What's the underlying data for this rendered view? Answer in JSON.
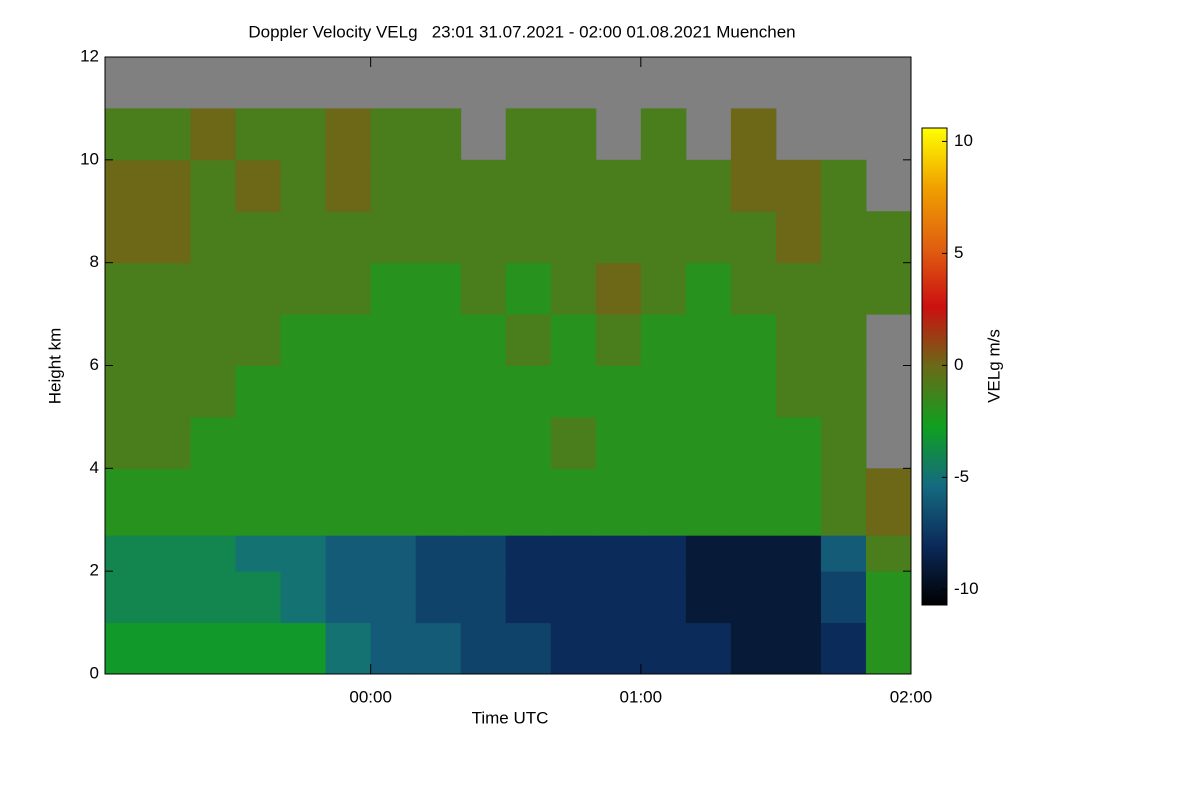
{
  "chart_data": {
    "type": "heatmap",
    "title": "Doppler Velocity VELg   23:01 31.07.2021 - 02:00 01.08.2021 Muenchen",
    "xlabel": "Time UTC",
    "ylabel": "Height km",
    "colorbar_label": "VELg m/s",
    "xlim": [
      23.0167,
      26.0
    ],
    "xticks": [
      {
        "value": 24,
        "label": "00:00"
      },
      {
        "value": 25,
        "label": "01:00"
      },
      {
        "value": 26,
        "label": "02:00"
      }
    ],
    "ylim": [
      0,
      12
    ],
    "yticks": [
      0,
      2,
      4,
      6,
      8,
      10,
      12
    ],
    "clim": [
      -10.7,
      10.6
    ],
    "cticks": [
      -10,
      -5,
      0,
      5,
      10
    ],
    "colormap": [
      "#000000",
      "#0b2a5a",
      "#156a80",
      "#10a020",
      "#6a6a18",
      "#cc1010",
      "#e06010",
      "#f0a000",
      "#ffff00"
    ],
    "nodata_color": "#808080",
    "xbins": [
      23.0167,
      23.1667,
      23.3333,
      23.5,
      23.6667,
      23.8333,
      24,
      24.1667,
      24.3333,
      24.5,
      24.6667,
      24.8333,
      25,
      25.1667,
      25.3333,
      25.5,
      25.6667,
      25.8333,
      26.0
    ],
    "ybins": [
      0,
      1,
      2,
      2.7,
      4,
      5,
      6,
      7,
      8,
      9,
      10,
      11,
      12
    ],
    "z": [
      [
        -3,
        -3,
        -3,
        -3,
        -3,
        -5,
        -6,
        -6,
        -7,
        -7,
        -8,
        -8,
        -8,
        -8,
        -9,
        -9,
        -8,
        -2
      ],
      [
        -4,
        -4,
        -4,
        -4,
        -5,
        -6,
        -6,
        -7,
        -7,
        -8,
        -8,
        -8,
        -8,
        -9,
        -9,
        -9,
        -7,
        -2
      ],
      [
        -4,
        -4,
        -4,
        -5,
        -5,
        -6,
        -6,
        -7,
        -7,
        -8,
        -8,
        -8,
        -8,
        -9,
        -9,
        -9,
        -6,
        -1
      ],
      [
        -2,
        -2,
        -2,
        -2,
        -2,
        -2,
        -2,
        -2,
        -2,
        -2,
        -2,
        -2,
        -2,
        -2,
        -2,
        -2,
        -1,
        0
      ],
      [
        -1,
        -1,
        -2,
        -2,
        -2,
        -2,
        -2,
        -2,
        -2,
        -2,
        -1,
        -2,
        -2,
        -2,
        -2,
        -2,
        -1,
        null
      ],
      [
        -1,
        -1,
        -1,
        -2,
        -2,
        -2,
        -2,
        -2,
        -2,
        -2,
        -2,
        -2,
        -2,
        -2,
        -2,
        -1,
        -1,
        null
      ],
      [
        -1,
        -1,
        -1,
        -1,
        -2,
        -2,
        -2,
        -2,
        -2,
        -1,
        -2,
        -1,
        -2,
        -2,
        -2,
        -1,
        -1,
        null
      ],
      [
        -1,
        -1,
        -1,
        -1,
        -1,
        -1,
        -2,
        -2,
        -1,
        -2,
        -1,
        0,
        -1,
        -2,
        -1,
        -1,
        -1,
        -1
      ],
      [
        0,
        0,
        -1,
        -1,
        -1,
        -1,
        -1,
        -1,
        -1,
        -1,
        -1,
        -1,
        -1,
        -1,
        -1,
        0,
        -1,
        -1
      ],
      [
        0,
        0,
        -1,
        0,
        -1,
        0,
        -1,
        -1,
        -1,
        -1,
        -1,
        -1,
        -1,
        -1,
        0,
        0,
        -1,
        null
      ],
      [
        -1,
        -1,
        0,
        -1,
        -1,
        0,
        -1,
        -1,
        null,
        -1,
        -1,
        null,
        -1,
        null,
        0,
        null,
        null,
        null
      ],
      [
        null,
        null,
        null,
        null,
        null,
        null,
        null,
        null,
        null,
        null,
        null,
        null,
        null,
        null,
        null,
        null,
        null,
        null
      ]
    ]
  }
}
